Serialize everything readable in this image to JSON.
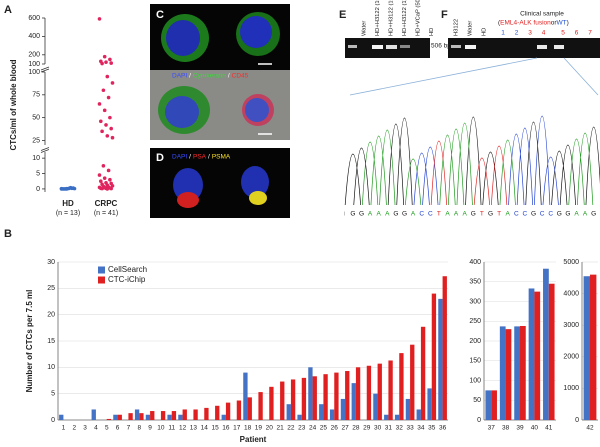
{
  "panel_labels": [
    "A",
    "B",
    "C",
    "D",
    "E",
    "F"
  ],
  "chart_data": [
    {
      "type": "strip",
      "ylabel": "CTCs/ml of whole blood",
      "series": [
        {
          "name": "HD",
          "note": "(n = 13)",
          "color": "#3a6fc4",
          "values": [
            0,
            0.1,
            0.2,
            0,
            0.1,
            0.3,
            0,
            0.2,
            0.1,
            0,
            0.4,
            0.1,
            0
          ]
        },
        {
          "name": "CRPC",
          "note": "(n = 41)",
          "color": "#e0245e",
          "values": [
            590,
            180,
            150,
            130,
            120,
            110,
            105,
            95,
            88,
            80,
            72,
            65,
            58,
            50,
            46,
            42,
            38,
            35,
            30,
            28,
            7.5,
            6,
            4.5,
            3.5,
            3,
            2.5,
            2,
            1.8,
            1.5,
            1.2,
            1,
            0.8,
            0.6,
            0.5,
            0.4,
            0.3,
            0.2,
            0.2,
            0.1,
            0.1,
            0
          ]
        }
      ],
      "y_segments": [
        {
          "ylim": [
            -1,
            12
          ],
          "yticks": [
            0,
            5,
            10
          ]
        },
        {
          "ylim": [
            20,
            100
          ],
          "yticks": [
            25,
            50,
            75,
            100
          ]
        },
        {
          "ylim": [
            100,
            600
          ],
          "yticks": [
            100,
            200,
            400,
            600
          ]
        }
      ]
    },
    {
      "type": "bar",
      "ylabel": "Number of CTCs per 7.5 ml",
      "xlabel": "Patient",
      "categories": [
        "1",
        "2",
        "3",
        "4",
        "5",
        "6",
        "7",
        "8",
        "9",
        "10",
        "11",
        "12",
        "13",
        "14",
        "15",
        "16",
        "17",
        "18",
        "19",
        "20",
        "21",
        "22",
        "23",
        "24",
        "25",
        "26",
        "27",
        "28",
        "29",
        "30",
        "31",
        "32",
        "33",
        "34",
        "35",
        "36"
      ],
      "series": [
        {
          "name": "CellSearch",
          "color": "#4472c4",
          "values": [
            1,
            0,
            0,
            2,
            0,
            1,
            0,
            2,
            1,
            0,
            1,
            1,
            0,
            0,
            0,
            1,
            0,
            9,
            0,
            0,
            0,
            3,
            1,
            10,
            3,
            2,
            4,
            7,
            0,
            5,
            1,
            1,
            4,
            2,
            6,
            23
          ]
        },
        {
          "name": "CTC-iChip",
          "color": "#e02020",
          "values": [
            0,
            0,
            0,
            0,
            0.2,
            1,
            1.3,
            1.3,
            1.7,
            1.7,
            1.7,
            2,
            2,
            2.3,
            2.7,
            3.3,
            3.7,
            4.3,
            5.3,
            6.3,
            7.3,
            7.7,
            8,
            8.3,
            8.7,
            9,
            9.3,
            10,
            10.3,
            10.7,
            11.3,
            12.7,
            14.3,
            17.7,
            24,
            27.3
          ]
        }
      ],
      "ylim": [
        0,
        30
      ],
      "yticks": [
        0,
        5,
        10,
        15,
        20,
        25,
        30
      ],
      "grid": true,
      "legend": "top-left"
    },
    {
      "type": "bar",
      "categories": [
        "37",
        "38",
        "39",
        "40",
        "41"
      ],
      "series": [
        {
          "color": "#4472c4",
          "values": [
            75,
            237,
            237,
            333,
            383
          ]
        },
        {
          "color": "#e02020",
          "values": [
            75,
            230,
            238,
            325,
            345
          ]
        }
      ],
      "ylim": [
        0,
        400
      ],
      "yticks": [
        0,
        50,
        100,
        150,
        200,
        250,
        300,
        350,
        400
      ],
      "grid": true
    },
    {
      "type": "bar",
      "categories": [
        "42"
      ],
      "series": [
        {
          "color": "#4472c4",
          "values": [
            4550
          ]
        },
        {
          "color": "#e02020",
          "values": [
            4600
          ]
        }
      ],
      "ylim": [
        0,
        5000
      ],
      "yticks": [
        0,
        1000,
        2000,
        3000,
        4000,
        5000
      ],
      "grid": true
    }
  ],
  "panel_c": {
    "stain_labels": [
      "DAPI",
      "/",
      "Cytokeratin",
      "/",
      "CD45"
    ],
    "stain_colors": [
      "#3a4dff",
      "#ffffff",
      "#3cd83c",
      "#ffffff",
      "#ff2a2a"
    ]
  },
  "panel_d": {
    "stain_labels": [
      "DAPI",
      "/",
      "PSA",
      "/",
      "PSMA"
    ],
    "stain_colors": [
      "#3a4dff",
      "#ffffff",
      "#ff2a2a",
      "#ffffff",
      "#ffe22a"
    ]
  },
  "panel_e": {
    "lanes": [
      "Water",
      "HD+H3122 (100)",
      "HD+H3122 (10)",
      "HD+H3122 (1)",
      "HD+VCaP (500)",
      "HD"
    ],
    "marker": "506 bp"
  },
  "panel_f": {
    "lanes": [
      "H3122",
      "Water",
      "HD"
    ],
    "header": "Clinical sample",
    "subheader": [
      "(",
      "EML4-ALK fusion",
      " or ",
      "WT",
      ")"
    ],
    "subheader_colors": [
      "#222222",
      "#e02020",
      "#222222",
      "#2050d0",
      "#222222"
    ],
    "samples": [
      "1",
      "2",
      "3",
      "4",
      "5",
      "6",
      "7"
    ],
    "sample_colors": [
      "#2050d0",
      "#2050d0",
      "#e02020",
      "#e02020",
      "#e02020",
      "#e02020",
      "#e02020"
    ]
  },
  "chromatogram": {
    "sequence": [
      "i",
      "G",
      "G",
      "A",
      "A",
      "A",
      "G",
      "G",
      "A",
      "C",
      "C",
      "T",
      "A",
      "A",
      "A",
      "G",
      "T",
      "G",
      "T",
      "A",
      "C",
      "C",
      "G",
      "C",
      "C",
      "G",
      "G",
      "A",
      "A",
      "G"
    ],
    "base_colors": {
      "A": "#1a9a1a",
      "C": "#2040d0",
      "G": "#111111",
      "T": "#e02020"
    }
  }
}
